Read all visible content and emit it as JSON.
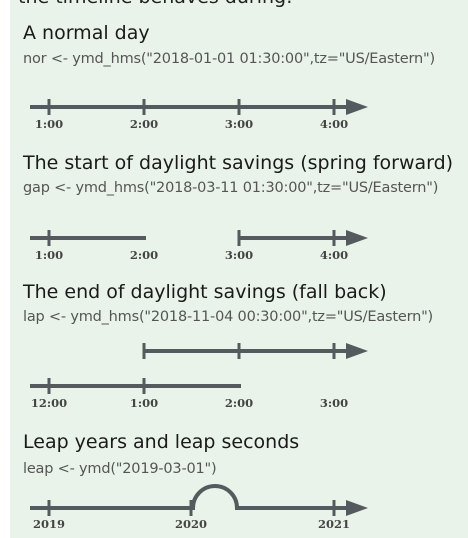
{
  "intro_fragment": "the timeline behaves during:",
  "sections": [
    {
      "title": "A normal day",
      "code": "nor <- ymd_hms(\"2018-01-01 01:30:00\",tz=\"US/Eastern\")",
      "labels": [
        "1:00",
        "2:00",
        "3:00",
        "4:00"
      ]
    },
    {
      "title": "The start of daylight savings (spring forward)",
      "code": "gap <- ymd_hms(\"2018-03-11 01:30:00\",tz=\"US/Eastern\")",
      "labels": [
        "1:00",
        "2:00",
        "3:00",
        "4:00"
      ]
    },
    {
      "title": "The end of daylight savings (fall back)",
      "code": "lap <- ymd_hms(\"2018-11-04 00:30:00\",tz=\"US/Eastern\")",
      "labels": [
        "12:00",
        "1:00",
        "2:00",
        "3:00"
      ]
    },
    {
      "title": "Leap years and leap seconds",
      "code": "leap <- ymd(\"2019-03-01\")",
      "labels": [
        "2019",
        "2020",
        "2021"
      ]
    }
  ],
  "colors": {
    "line": "#555a5e",
    "panel": "#e9f3e9"
  }
}
